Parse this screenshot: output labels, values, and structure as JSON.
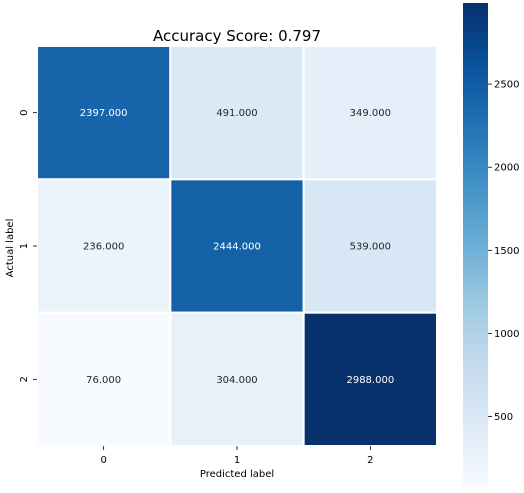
{
  "chart_data": {
    "type": "heatmap",
    "title": "Accuracy Score: 0.797",
    "xlabel": "Predicted label",
    "ylabel": "Actual label",
    "x_categories": [
      "0",
      "1",
      "2"
    ],
    "y_categories": [
      "0",
      "1",
      "2"
    ],
    "values": [
      [
        2397,
        491,
        349
      ],
      [
        236,
        2444,
        539
      ],
      [
        76,
        304,
        2988
      ]
    ],
    "cell_labels": [
      [
        "2397.000",
        "491.000",
        "349.000"
      ],
      [
        "236.000",
        "2444.000",
        "539.000"
      ],
      [
        "76.000",
        "304.000",
        "2988.000"
      ]
    ],
    "colormap": "Blues",
    "colorbar": {
      "range": [
        76,
        2988
      ],
      "ticks": [
        500,
        1000,
        1500,
        2000,
        2500
      ]
    },
    "colors": {
      "low": "#f7fbff",
      "high": "#08306b",
      "cell_border": "#ffffff"
    }
  }
}
